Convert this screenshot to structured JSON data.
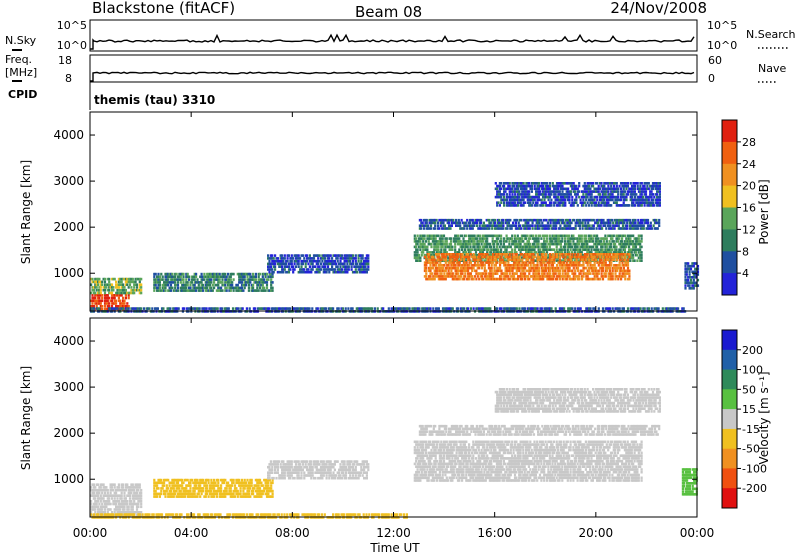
{
  "header": {
    "station": "Blackstone (fitACF)",
    "beam": "Beam 08",
    "date": "24/Nov/2008"
  },
  "top_panels": {
    "nsky_label": "N.Sky",
    "nsearch_label": "N.Search",
    "nsky_ticks": [
      "10^5",
      "10^0"
    ],
    "nsearch_ticks": [
      "10^5",
      "10^0"
    ],
    "freq_label_1": "Freq.",
    "freq_label_2": "[MHz]",
    "freq_ticks": [
      "18",
      "8"
    ],
    "nave_label": "Nave",
    "nave_ticks": [
      "60",
      "0"
    ],
    "cpid_label": "CPID",
    "cpid_value": "themis (tau) 3310"
  },
  "colors": {
    "power_scale": [
      "#2323d8",
      "#1f4fa0",
      "#2e7d5e",
      "#5aa55a",
      "#f0c020",
      "#f09020",
      "#f06010",
      "#e02010"
    ],
    "velocity_scale": [
      "#1a1ad0",
      "#2060a8",
      "#2e8a5a",
      "#58c040",
      "#c8c8c8",
      "#f0c020",
      "#f09020",
      "#f05010",
      "#e01010"
    ]
  },
  "chart_data": [
    {
      "type": "heatmap",
      "name": "power",
      "ylabel": "Slant Range [km]",
      "yticks": [
        "4000",
        "3000",
        "2000",
        "1000"
      ],
      "ylim": [
        180,
        4500
      ],
      "xlim": [
        0,
        24
      ],
      "colorbar_label": "Power [dB]",
      "colorbar_ticks": [
        "28",
        "24",
        "20",
        "16",
        "12",
        "8",
        "4"
      ],
      "colorbar_range": [
        0,
        32
      ],
      "regions": [
        {
          "t0": 0.0,
          "t1": 1.5,
          "r0": 250,
          "r1": 600,
          "v": 28
        },
        {
          "t0": 0.0,
          "t1": 2.0,
          "r0": 600,
          "r1": 950,
          "v": 14
        },
        {
          "t0": 2.5,
          "t1": 7.2,
          "r0": 650,
          "r1": 1050,
          "v": 10
        },
        {
          "t0": 0.0,
          "t1": 23.5,
          "r0": 200,
          "r1": 320,
          "v": 6
        },
        {
          "t0": 7.0,
          "t1": 11.0,
          "r0": 1050,
          "r1": 1450,
          "v": 5
        },
        {
          "t0": 12.8,
          "t1": 21.8,
          "r0": 1300,
          "r1": 1900,
          "v": 12
        },
        {
          "t0": 13.2,
          "t1": 21.3,
          "r0": 900,
          "r1": 1450,
          "v": 24
        },
        {
          "t0": 13.0,
          "t1": 22.5,
          "r0": 2000,
          "r1": 2200,
          "v": 6
        },
        {
          "t0": 16.0,
          "t1": 22.5,
          "r0": 2500,
          "r1": 3000,
          "v": 5
        },
        {
          "t0": 23.5,
          "t1": 24.0,
          "r0": 700,
          "r1": 1300,
          "v": 6
        }
      ]
    },
    {
      "type": "heatmap",
      "name": "velocity",
      "ylabel": "Slant Range [km]",
      "yticks": [
        "4000",
        "3000",
        "2000",
        "1000"
      ],
      "ylim": [
        180,
        4500
      ],
      "xlim": [
        0,
        24
      ],
      "colorbar_label": "Velocity [m s⁻¹]",
      "colorbar_ticks": [
        "200",
        "100",
        "50",
        "15",
        "-15",
        "-50",
        "-100",
        "-200"
      ],
      "regions": [
        {
          "t0": 0.0,
          "t1": 2.0,
          "r0": 250,
          "r1": 950,
          "v": 0
        },
        {
          "t0": 2.5,
          "t1": 7.2,
          "r0": 650,
          "r1": 1050,
          "v": -40
        },
        {
          "t0": 0.0,
          "t1": 12.5,
          "r0": 200,
          "r1": 320,
          "v": -35
        },
        {
          "t0": 7.0,
          "t1": 11.0,
          "r0": 1050,
          "r1": 1450,
          "v": 0
        },
        {
          "t0": 12.8,
          "t1": 21.8,
          "r0": 1000,
          "r1": 1900,
          "v": 0
        },
        {
          "t0": 13.0,
          "t1": 22.5,
          "r0": 2000,
          "r1": 2200,
          "v": 0
        },
        {
          "t0": 16.0,
          "t1": 22.5,
          "r0": 2500,
          "r1": 3000,
          "v": 0
        },
        {
          "t0": 23.4,
          "t1": 24.0,
          "r0": 700,
          "r1": 1300,
          "v": 40
        }
      ]
    }
  ],
  "x_axis": {
    "ticks": [
      "00:00",
      "04:00",
      "08:00",
      "12:00",
      "16:00",
      "20:00",
      "00:00"
    ],
    "label": "Time UT"
  }
}
